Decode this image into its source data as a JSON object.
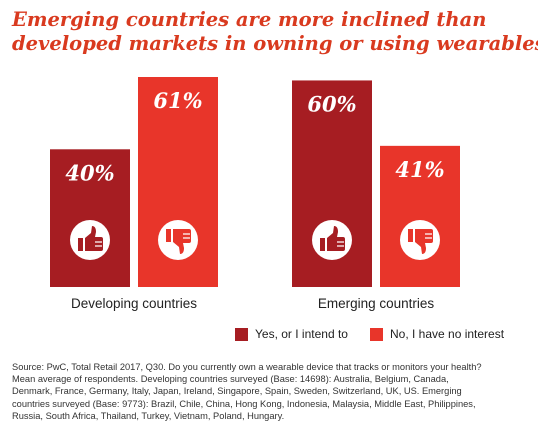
{
  "title": {
    "line1": "Emerging countries are more inclined than",
    "line2": "developed markets in owning or using wearables"
  },
  "colors": {
    "title": "#d93a1f",
    "yes": "#a61d22",
    "no": "#e8352a"
  },
  "chart_data": {
    "type": "bar",
    "categories": [
      "Developing countries",
      "Emerging countries"
    ],
    "series": [
      {
        "name": "Yes, or I intend to",
        "values": [
          40,
          60
        ],
        "icon": "thumbs-up-icon",
        "color": "#a61d22"
      },
      {
        "name": "No, I have no interest",
        "values": [
          61,
          41
        ],
        "icon": "thumbs-down-icon",
        "color": "#e8352a"
      }
    ],
    "value_suffix": "%",
    "ylim": [
      0,
      61
    ],
    "grid": false,
    "legend_position": "bottom-right"
  },
  "source": {
    "line1": "Source: PwC, Total Retail 2017, Q30. Do you currently own a wearable device that tracks or monitors your health?",
    "line2": "Mean average of respondents. Developing countries surveyed (Base: 14698): Australia, Belgium, Canada,",
    "line3": "Denmark, France, Germany, Italy, Japan, Ireland, Singapore, Spain, Sweden, Switzerland, UK, US. Emerging",
    "line4": "countries surveyed (Base: 9773): Brazil, Chile, China, Hong Kong, Indonesia, Malaysia, Middle East, Philippines,",
    "line5": "Russia, South Africa, Thailand, Turkey, Vietnam, Poland, Hungary."
  }
}
